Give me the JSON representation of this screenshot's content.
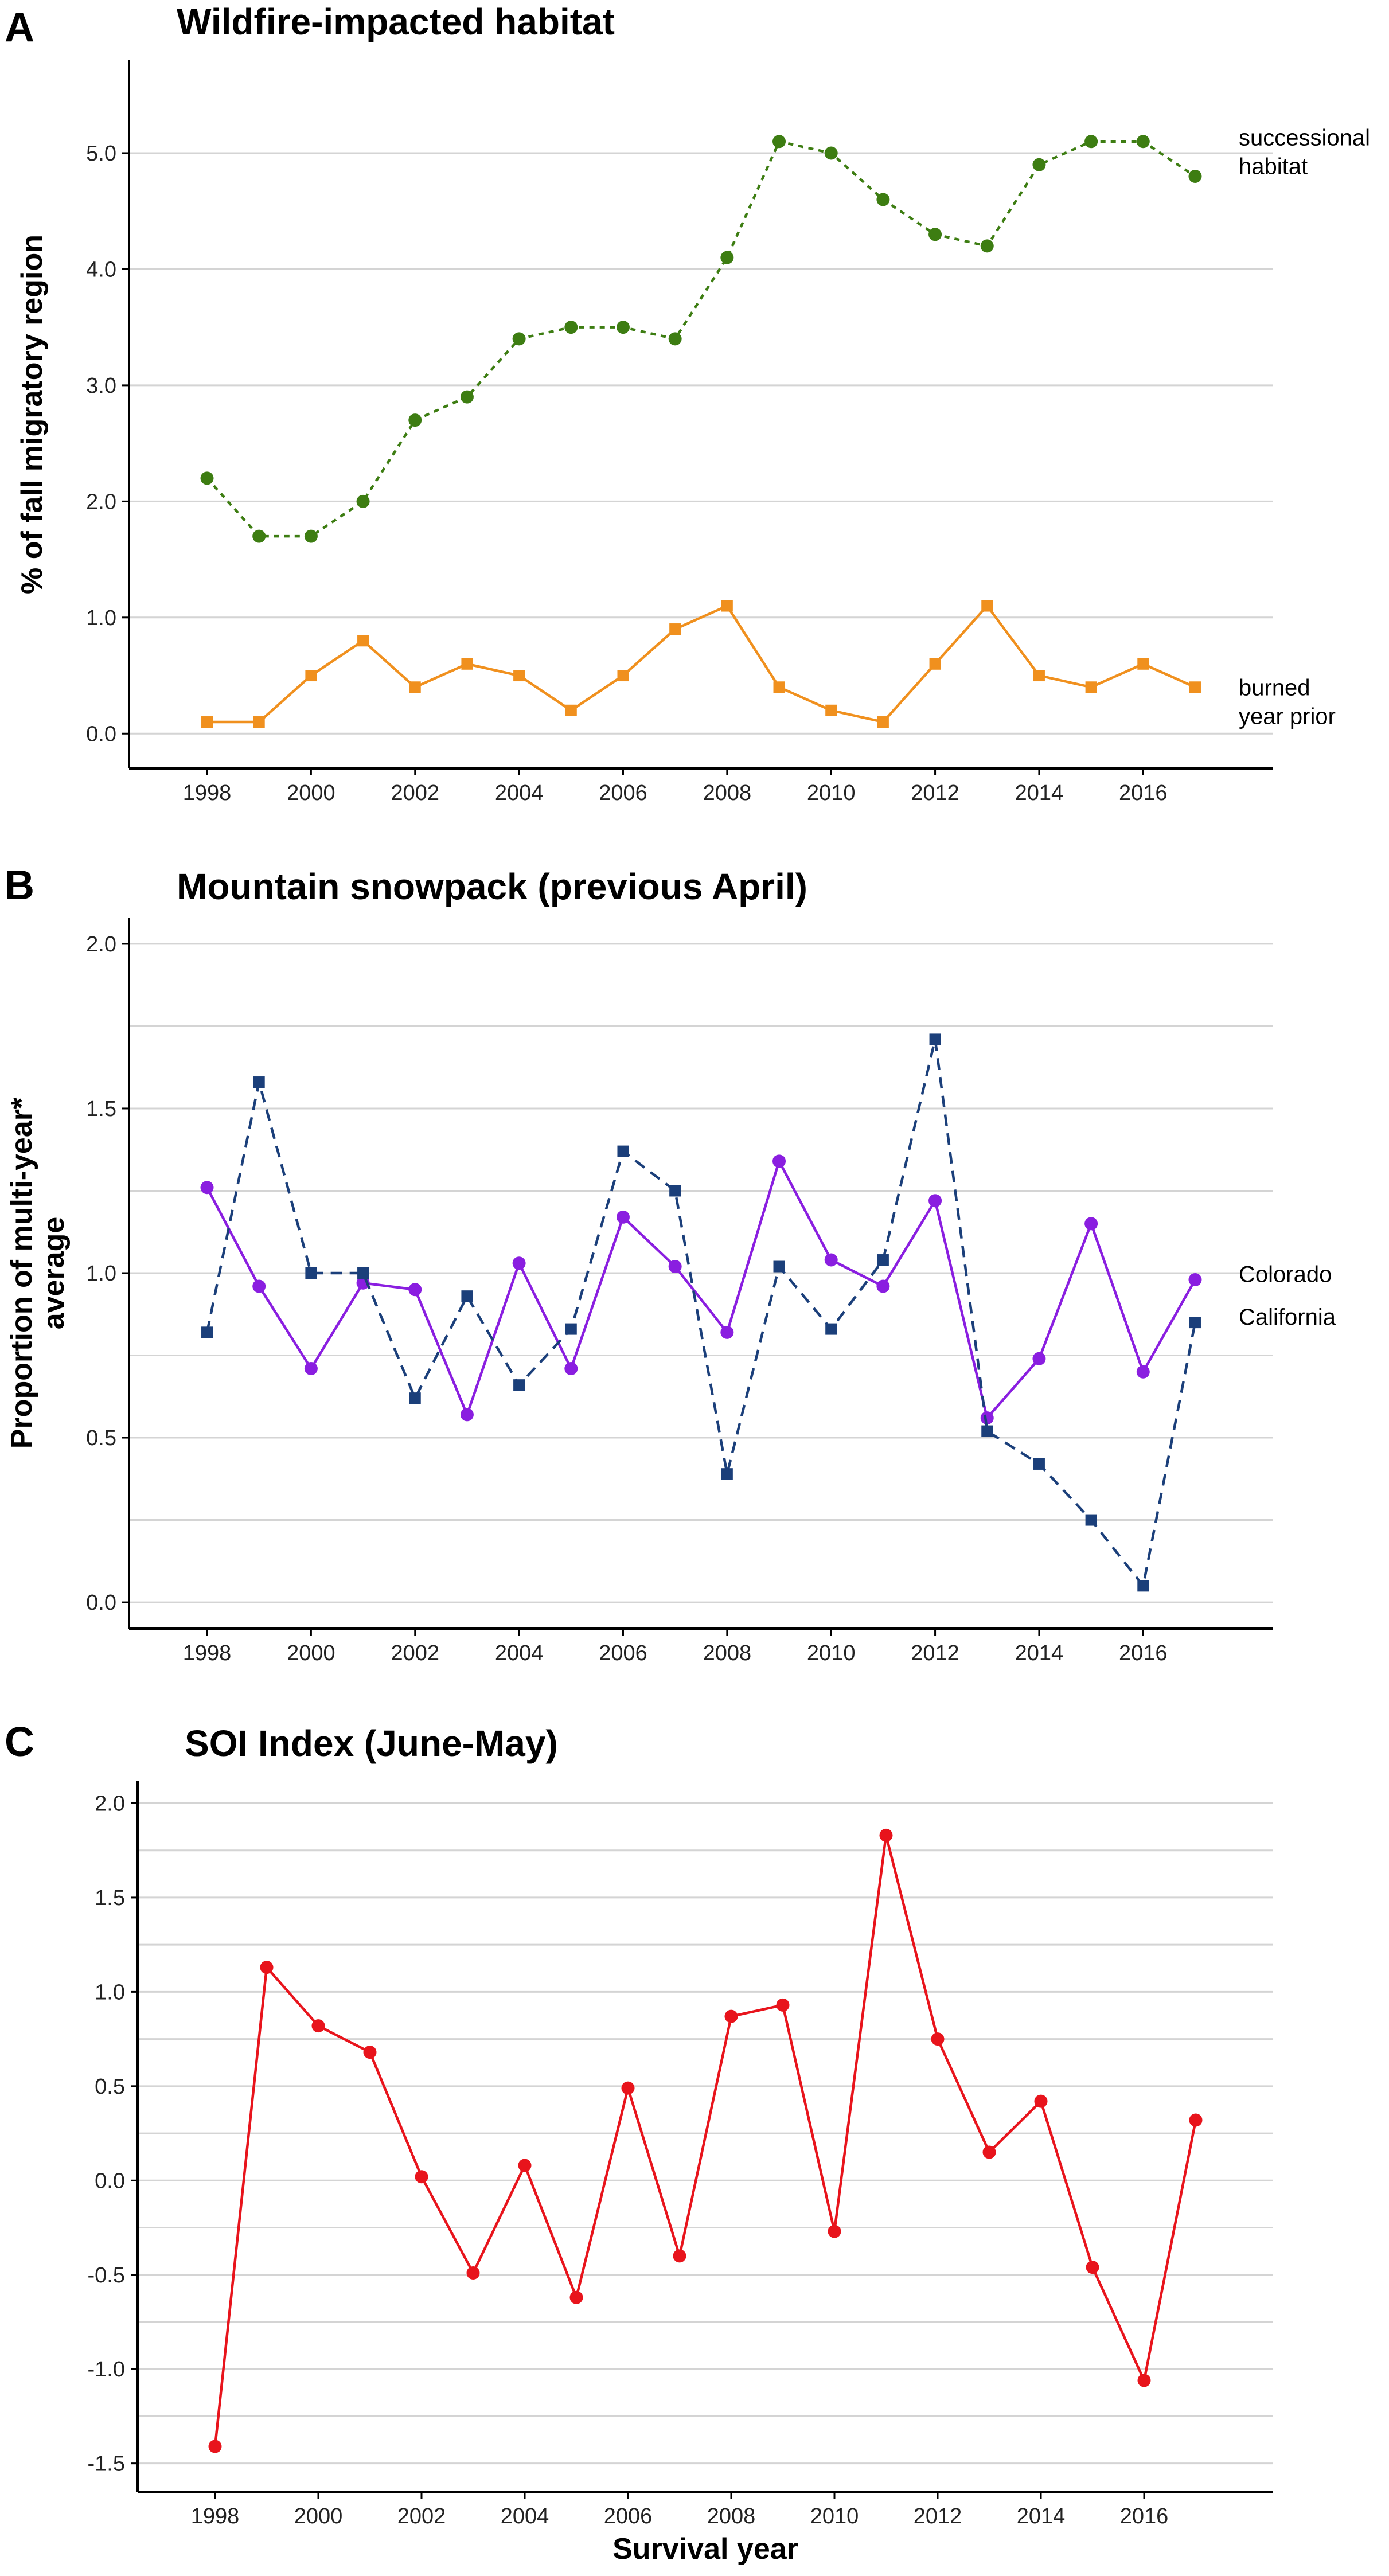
{
  "chart_data": [
    {
      "panel": "A",
      "type": "line",
      "title": "Wildfire-impacted habitat",
      "xlabel": "",
      "ylabel": "% of fall migratory region",
      "xlim": [
        1996.5,
        2018.5
      ],
      "ylim": [
        -0.3,
        5.8
      ],
      "yticks": [
        0.0,
        1.0,
        2.0,
        3.0,
        4.0,
        5.0
      ],
      "ytick_labels": [
        "0.0",
        "1.0",
        "2.0",
        "3.0",
        "4.0",
        "5.0"
      ],
      "xticks": [
        1998,
        2000,
        2002,
        2004,
        2006,
        2008,
        2010,
        2012,
        2014,
        2016
      ],
      "xtick_labels": [
        "1998",
        "2000",
        "2002",
        "2004",
        "2006",
        "2008",
        "2010",
        "2012",
        "2014",
        "2016"
      ],
      "grid": true,
      "x": [
        1998,
        1999,
        2000,
        2001,
        2002,
        2003,
        2004,
        2005,
        2006,
        2007,
        2008,
        2009,
        2010,
        2011,
        2012,
        2013,
        2014,
        2015,
        2016,
        2017
      ],
      "series": [
        {
          "name": "successional habitat",
          "label_lines": [
            "successional",
            "habitat"
          ],
          "color": "#3d7d12",
          "dash": "dotted",
          "marker": "circle",
          "values": [
            2.2,
            1.7,
            1.7,
            2.0,
            2.7,
            2.9,
            3.4,
            3.5,
            3.5,
            3.4,
            4.1,
            5.1,
            5.0,
            4.6,
            4.3,
            4.2,
            4.9,
            5.1,
            5.1,
            4.8
          ]
        },
        {
          "name": "burned year prior",
          "label_lines": [
            "burned",
            "year prior"
          ],
          "color": "#f0901e",
          "dash": "solid",
          "marker": "square",
          "values": [
            0.1,
            0.1,
            0.5,
            0.8,
            0.4,
            0.6,
            0.5,
            0.2,
            0.5,
            0.9,
            1.1,
            0.4,
            0.2,
            0.1,
            0.6,
            1.1,
            0.5,
            0.4,
            0.6,
            0.4
          ]
        }
      ]
    },
    {
      "panel": "B",
      "type": "line",
      "title": "Mountain snowpack (previous April)",
      "xlabel": "",
      "ylabel_lines": [
        "Proportion of multi-year*",
        "average"
      ],
      "xlim": [
        1996.5,
        2018.5
      ],
      "ylim": [
        -0.08,
        2.08
      ],
      "yticks": [
        0.0,
        0.5,
        1.0,
        1.5,
        2.0
      ],
      "ytick_labels": [
        "0.0",
        "0.5",
        "1.0",
        "1.5",
        "2.0"
      ],
      "minor_gridlines": [
        0.25,
        0.75,
        1.25,
        1.75
      ],
      "xticks": [
        1998,
        2000,
        2002,
        2004,
        2006,
        2008,
        2010,
        2012,
        2014,
        2016
      ],
      "xtick_labels": [
        "1998",
        "2000",
        "2002",
        "2004",
        "2006",
        "2008",
        "2010",
        "2012",
        "2014",
        "2016"
      ],
      "grid": true,
      "x": [
        1998,
        1999,
        2000,
        2001,
        2002,
        2003,
        2004,
        2005,
        2006,
        2007,
        2008,
        2009,
        2010,
        2011,
        2012,
        2013,
        2014,
        2015,
        2016,
        2017
      ],
      "series": [
        {
          "name": "Colorado",
          "label_lines": [
            "Colorado"
          ],
          "color": "#8a1ee0",
          "dash": "solid",
          "marker": "circle",
          "values": [
            1.26,
            0.96,
            0.71,
            0.97,
            0.95,
            0.57,
            1.03,
            0.71,
            1.17,
            1.02,
            0.82,
            1.34,
            1.04,
            0.96,
            1.22,
            0.56,
            0.74,
            1.15,
            0.7,
            0.98
          ]
        },
        {
          "name": "California",
          "label_lines": [
            "California"
          ],
          "color": "#1b3f7a",
          "dash": "dashed",
          "marker": "square",
          "values": [
            0.82,
            1.58,
            1.0,
            1.0,
            0.62,
            0.93,
            0.66,
            0.83,
            1.37,
            1.25,
            0.39,
            1.02,
            0.83,
            1.04,
            1.71,
            0.52,
            0.42,
            0.25,
            0.05,
            0.85
          ]
        }
      ]
    },
    {
      "panel": "C",
      "type": "line",
      "title": "SOI Index (June-May)",
      "xlabel": "Survival year",
      "ylabel": "",
      "xlim": [
        1996.5,
        2018.5
      ],
      "ylim": [
        -1.65,
        2.12
      ],
      "yticks": [
        -1.5,
        -1.0,
        -0.5,
        0.0,
        0.5,
        1.0,
        1.5,
        2.0
      ],
      "ytick_labels": [
        "-1.5",
        "-1.0",
        "-0.5",
        "0.0",
        "0.5",
        "1.0",
        "1.5",
        "2.0"
      ],
      "minor_gridlines": [
        -1.25,
        -0.75,
        -0.25,
        0.25,
        0.75,
        1.25,
        1.75
      ],
      "xticks": [
        1998,
        2000,
        2002,
        2004,
        2006,
        2008,
        2010,
        2012,
        2014,
        2016
      ],
      "xtick_labels": [
        "1998",
        "2000",
        "2002",
        "2004",
        "2006",
        "2008",
        "2010",
        "2012",
        "2014",
        "2016"
      ],
      "grid": true,
      "x": [
        1998,
        1999,
        2000,
        2001,
        2002,
        2003,
        2004,
        2005,
        2006,
        2007,
        2008,
        2009,
        2010,
        2011,
        2012,
        2013,
        2014,
        2015,
        2016,
        2017
      ],
      "series": [
        {
          "name": "SOI",
          "label_lines": [],
          "color": "#e8141c",
          "dash": "solid",
          "marker": "circle",
          "values": [
            -1.41,
            1.13,
            0.82,
            0.68,
            0.02,
            -0.49,
            0.08,
            -0.62,
            0.49,
            -0.4,
            0.87,
            0.93,
            -0.27,
            1.83,
            0.75,
            0.15,
            0.42,
            -0.46,
            -1.06,
            0.32
          ]
        }
      ]
    }
  ]
}
